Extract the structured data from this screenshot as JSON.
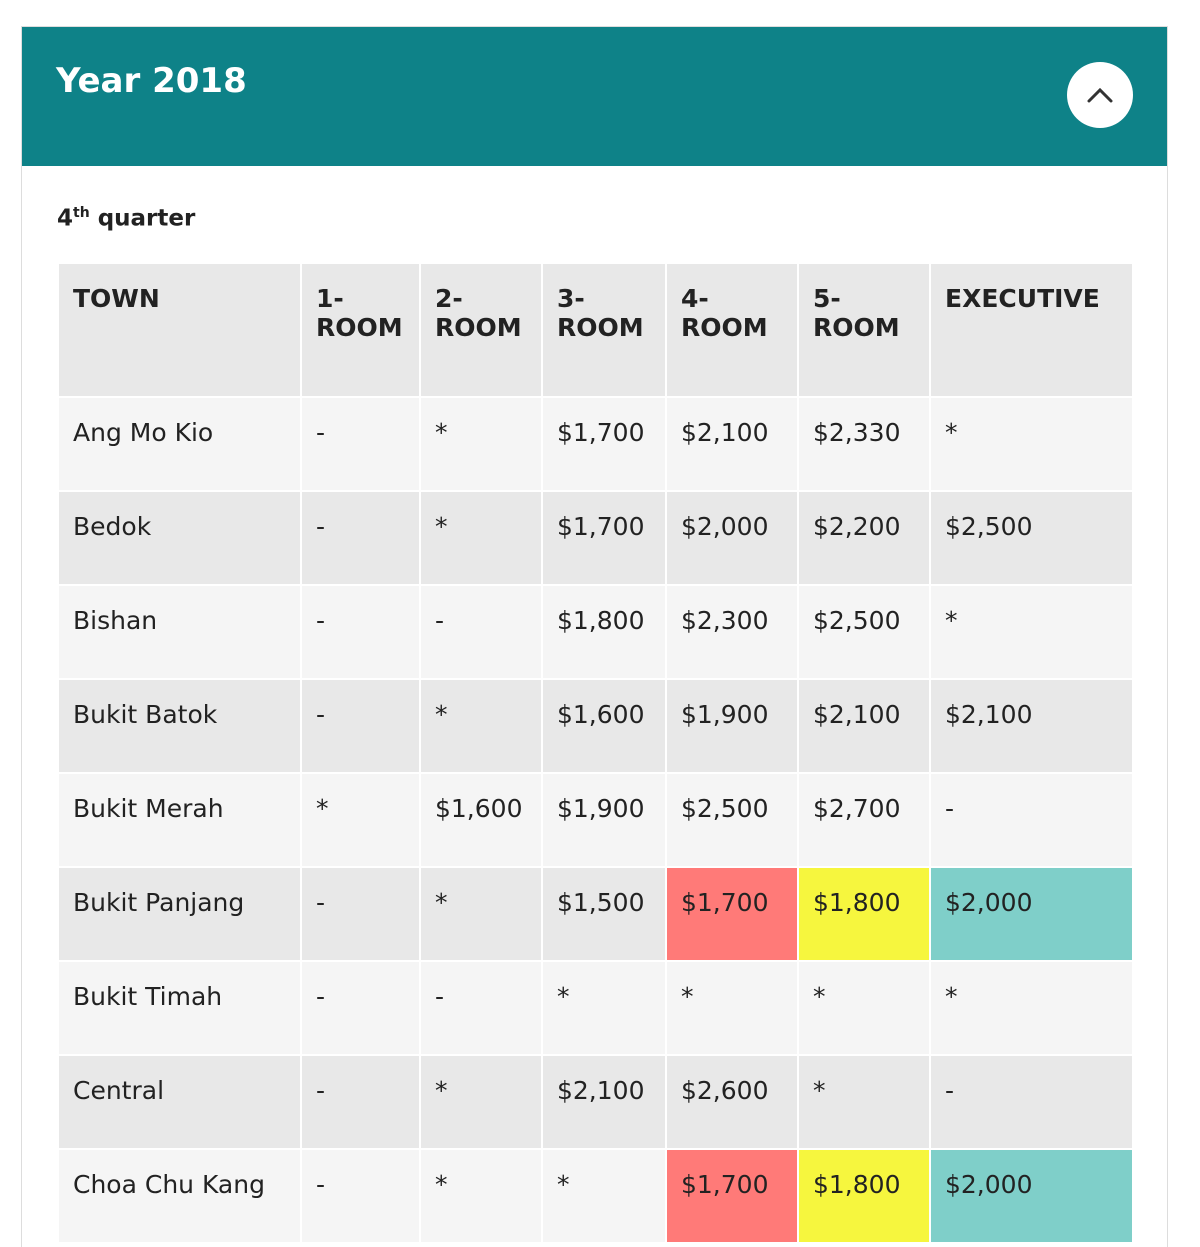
{
  "header": {
    "title": "Year 2018"
  },
  "section": {
    "quarter_number": "4",
    "quarter_suffix": "th",
    "quarter_word": "quarter"
  },
  "table": {
    "columns": [
      "TOWN",
      "1-ROOM",
      "2-ROOM",
      "3-ROOM",
      "4-ROOM",
      "5-ROOM",
      "EXECUTIVE"
    ],
    "rows": [
      [
        "Ang Mo Kio",
        "-",
        "*",
        "$1,700",
        "$2,100",
        "$2,330",
        "*"
      ],
      [
        "Bedok",
        "-",
        "*",
        "$1,700",
        "$2,000",
        "$2,200",
        "$2,500"
      ],
      [
        "Bishan",
        "-",
        "-",
        "$1,800",
        "$2,300",
        "$2,500",
        "*"
      ],
      [
        "Bukit Batok",
        "-",
        "*",
        "$1,600",
        "$1,900",
        "$2,100",
        "$2,100"
      ],
      [
        "Bukit Merah",
        "*",
        "$1,600",
        "$1,900",
        "$2,500",
        "$2,700",
        "-"
      ],
      [
        "Bukit Panjang",
        "-",
        "*",
        "$1,500",
        {
          "text": "$1,700",
          "color": "#ff7a78"
        },
        {
          "text": "$1,800",
          "color": "#f6f63e"
        },
        {
          "text": "$2,000",
          "color": "#7fcfc9"
        }
      ],
      [
        "Bukit Timah",
        "-",
        "-",
        "*",
        "*",
        "*",
        "*"
      ],
      [
        "Central",
        "-",
        "*",
        "$2,100",
        "$2,600",
        "*",
        "-"
      ],
      [
        "Choa Chu Kang",
        "-",
        "*",
        "*",
        {
          "text": "$1,700",
          "color": "#ff7a78"
        },
        {
          "text": "$1,800",
          "color": "#f6f63e"
        },
        {
          "text": "$2,000",
          "color": "#7fcfc9"
        }
      ]
    ]
  }
}
